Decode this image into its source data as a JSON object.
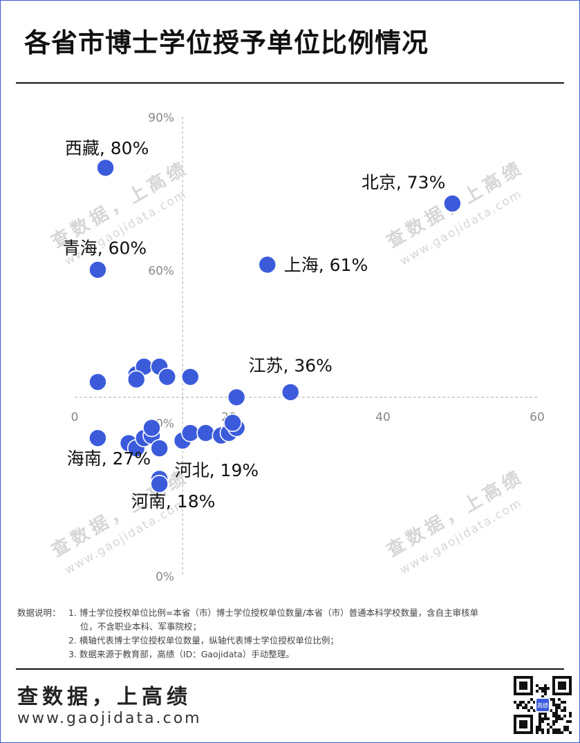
{
  "title": "各省市博士学位授予单位比例情况",
  "colors": {
    "point": "#3b5bdb",
    "axis": "#bdbdbd",
    "tick": "#888888",
    "text": "#111111",
    "watermark": "#d6d6d6"
  },
  "watermarks": [
    {
      "line1": "查数据，上高绩",
      "line2": "www.gaojidata.com"
    },
    {
      "line1": "查数据，上高绩",
      "line2": "www.gaojidata.com"
    },
    {
      "line1": "查数据，上高绩",
      "line2": "www.gaojidata.com"
    },
    {
      "line1": "查数据，上高绩",
      "line2": "www.gaojidata.com"
    }
  ],
  "chart_data": {
    "type": "scatter",
    "xlabel": "",
    "ylabel": "",
    "xlim": [
      0,
      60
    ],
    "ylim": [
      0,
      90
    ],
    "x_ticks": [
      {
        "value": 0,
        "label": "0"
      },
      {
        "value": 20,
        "label": "20"
      },
      {
        "value": 40,
        "label": "40"
      },
      {
        "value": 60,
        "label": "60"
      }
    ],
    "y_ticks": [
      {
        "value": 0,
        "label": "0%"
      },
      {
        "value": 30,
        "label": "30%"
      },
      {
        "value": 60,
        "label": "60%"
      },
      {
        "value": 90,
        "label": "90%"
      }
    ],
    "x_axis_crosses_y": 35,
    "y_axis_crosses_x": 14,
    "grid": false,
    "legend": "none",
    "points": [
      {
        "x": 4,
        "y": 80,
        "label": "西藏, 80%"
      },
      {
        "x": 49,
        "y": 73,
        "label": "北京, 73%"
      },
      {
        "x": 25,
        "y": 61,
        "label": "上海, 61%"
      },
      {
        "x": 3,
        "y": 60,
        "label": "青海, 60%"
      },
      {
        "x": 28,
        "y": 36,
        "label": "江苏, 36%"
      },
      {
        "x": 3,
        "y": 27,
        "label": "海南, 27%"
      },
      {
        "x": 11,
        "y": 19,
        "label": "河北, 19%"
      },
      {
        "x": 11,
        "y": 18,
        "label": "河南, 18%"
      },
      {
        "x": 3,
        "y": 38,
        "label": ""
      },
      {
        "x": 8,
        "y": 39.5,
        "label": ""
      },
      {
        "x": 9,
        "y": 41,
        "label": ""
      },
      {
        "x": 8,
        "y": 38.5,
        "label": ""
      },
      {
        "x": 11,
        "y": 41,
        "label": ""
      },
      {
        "x": 12,
        "y": 39,
        "label": ""
      },
      {
        "x": 15,
        "y": 39,
        "label": ""
      },
      {
        "x": 21,
        "y": 35,
        "label": ""
      },
      {
        "x": 7,
        "y": 26,
        "label": ""
      },
      {
        "x": 8,
        "y": 25,
        "label": ""
      },
      {
        "x": 9,
        "y": 27,
        "label": ""
      },
      {
        "x": 10,
        "y": 27.5,
        "label": ""
      },
      {
        "x": 10,
        "y": 29,
        "label": ""
      },
      {
        "x": 11,
        "y": 25,
        "label": ""
      },
      {
        "x": 14,
        "y": 26.5,
        "label": ""
      },
      {
        "x": 15,
        "y": 28,
        "label": ""
      },
      {
        "x": 17,
        "y": 28,
        "label": ""
      },
      {
        "x": 19,
        "y": 27.5,
        "label": ""
      },
      {
        "x": 20,
        "y": 28,
        "label": ""
      },
      {
        "x": 21,
        "y": 29,
        "label": ""
      },
      {
        "x": 20.5,
        "y": 30,
        "label": ""
      }
    ]
  },
  "notes": {
    "lead": "数据说明：",
    "items": [
      {
        "text": "1. 博士学位授权单位比例=本省（市）博士学位授权单位数量/本省（市）普通本科学校数量，含自主审核单",
        "cont": "位，不含职业本科、军事院校；"
      },
      {
        "text": "2. 横轴代表博士学位授权单位数量，纵轴代表博士学位授权单位比例；",
        "cont": ""
      },
      {
        "text": "3. 数据来源于教育部，高绩（ID：Gaojidata）手动整理。",
        "cont": ""
      }
    ]
  },
  "footer": {
    "slogan": "查数据，上高绩",
    "website": "www.gaojidata.com",
    "qr_badge": "高绩"
  }
}
